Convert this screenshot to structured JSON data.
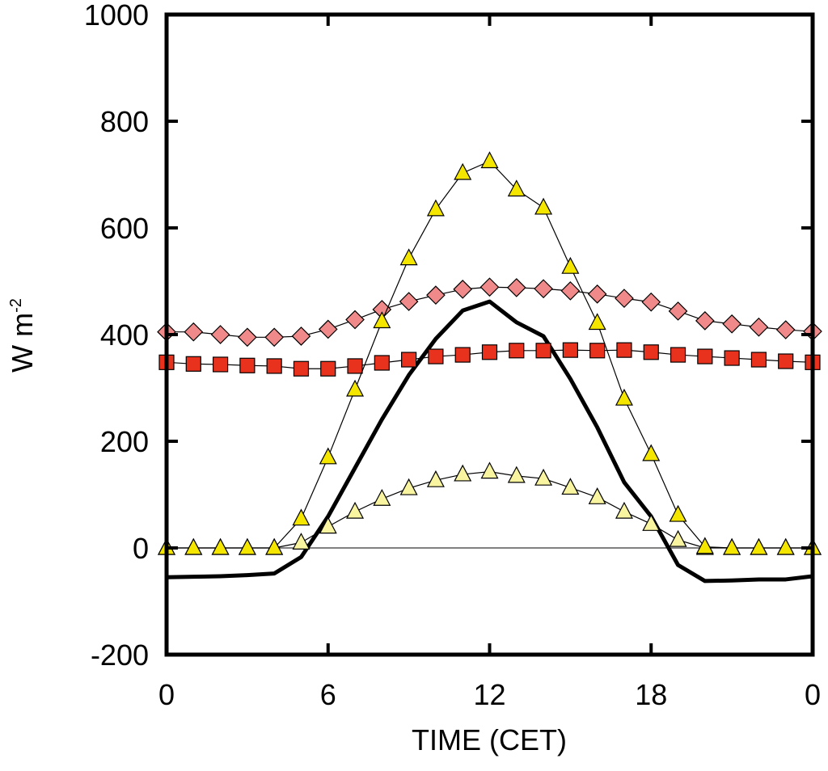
{
  "chart_data": {
    "type": "line",
    "xlabel": "TIME (CET)",
    "ylabel": {
      "text": "W m",
      "superscript": "-2"
    },
    "x": [
      0,
      1,
      2,
      3,
      4,
      5,
      6,
      7,
      8,
      9,
      10,
      11,
      12,
      13,
      14,
      15,
      16,
      17,
      18,
      19,
      20,
      21,
      22,
      23,
      24
    ],
    "xlim": [
      0,
      24
    ],
    "xticks": [
      0,
      6,
      12,
      18,
      {
        "value": 24,
        "label": "0"
      }
    ],
    "ylim": [
      -200,
      1000
    ],
    "yticks": [
      -200,
      0,
      200,
      400,
      600,
      800,
      1000
    ],
    "hline": 0,
    "series": [
      {
        "color": "#000000",
        "marker": "none",
        "values": [
          -55,
          -54,
          -53,
          -51,
          -48,
          -17,
          59,
          150,
          241,
          324,
          392,
          445,
          462,
          423,
          397,
          317,
          226,
          123,
          59,
          -32,
          -62,
          -61,
          -59,
          -59,
          -53
        ]
      },
      {
        "color": "#f8f4a0",
        "marker": "triangle",
        "values": [
          0,
          0,
          0,
          0,
          0,
          10,
          40,
          68,
          92,
          112,
          127,
          138,
          143,
          135,
          130,
          113,
          95,
          68,
          45,
          15,
          0,
          0,
          0,
          0,
          0
        ]
      },
      {
        "color": "#e8321e",
        "marker": "square",
        "values": [
          348,
          345,
          344,
          342,
          341,
          336,
          336,
          341,
          347,
          353,
          359,
          362,
          367,
          370,
          370,
          371,
          370,
          371,
          367,
          362,
          359,
          356,
          353,
          350,
          348
        ]
      },
      {
        "color": "#f08a8a",
        "marker": "diamond",
        "values": [
          405,
          405,
          400,
          395,
          395,
          397,
          410,
          428,
          447,
          462,
          474,
          485,
          489,
          488,
          486,
          482,
          476,
          468,
          461,
          444,
          426,
          420,
          414,
          409,
          406
        ]
      },
      {
        "color": "#f5e600",
        "marker": "triangle",
        "values": [
          0,
          0,
          0,
          0,
          0,
          55,
          170,
          297,
          425,
          543,
          635,
          703,
          725,
          672,
          638,
          527,
          422,
          280,
          176,
          62,
          2,
          0,
          0,
          0,
          0
        ]
      }
    ]
  }
}
